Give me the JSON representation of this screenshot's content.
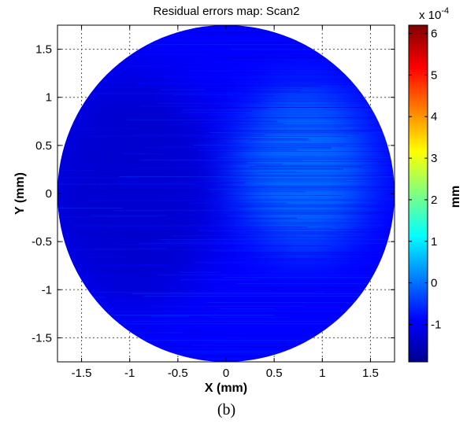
{
  "chart_data": {
    "type": "heatmap",
    "title": "Residual errors map: Scan2",
    "xlabel": "X (mm)",
    "ylabel": "Y (mm)",
    "xlim": [
      -1.75,
      1.75
    ],
    "ylim": [
      -1.75,
      1.75
    ],
    "x_ticks": [
      "-1.5",
      "-1",
      "-0.5",
      "0",
      "0.5",
      "1",
      "1.5"
    ],
    "y_ticks": [
      "1.5",
      "1",
      "0.5",
      "0",
      "-0.5",
      "-1",
      "-1.5"
    ],
    "grid": true,
    "colorbar": {
      "label": "mm",
      "scale_text": "x 10",
      "scale_exponent": "-4",
      "range": [
        -1.9,
        6.2
      ],
      "ticks": [
        "6",
        "5",
        "4",
        "3",
        "2",
        "1",
        "0",
        "-1"
      ],
      "colormap": "jet"
    },
    "field": {
      "shape": "circle",
      "center": [
        0,
        0
      ],
      "radius": 1.75,
      "background_value": -0.9,
      "dark_region_value": -1.4,
      "bright_region_value": 0.2
    }
  },
  "caption": "(b)"
}
